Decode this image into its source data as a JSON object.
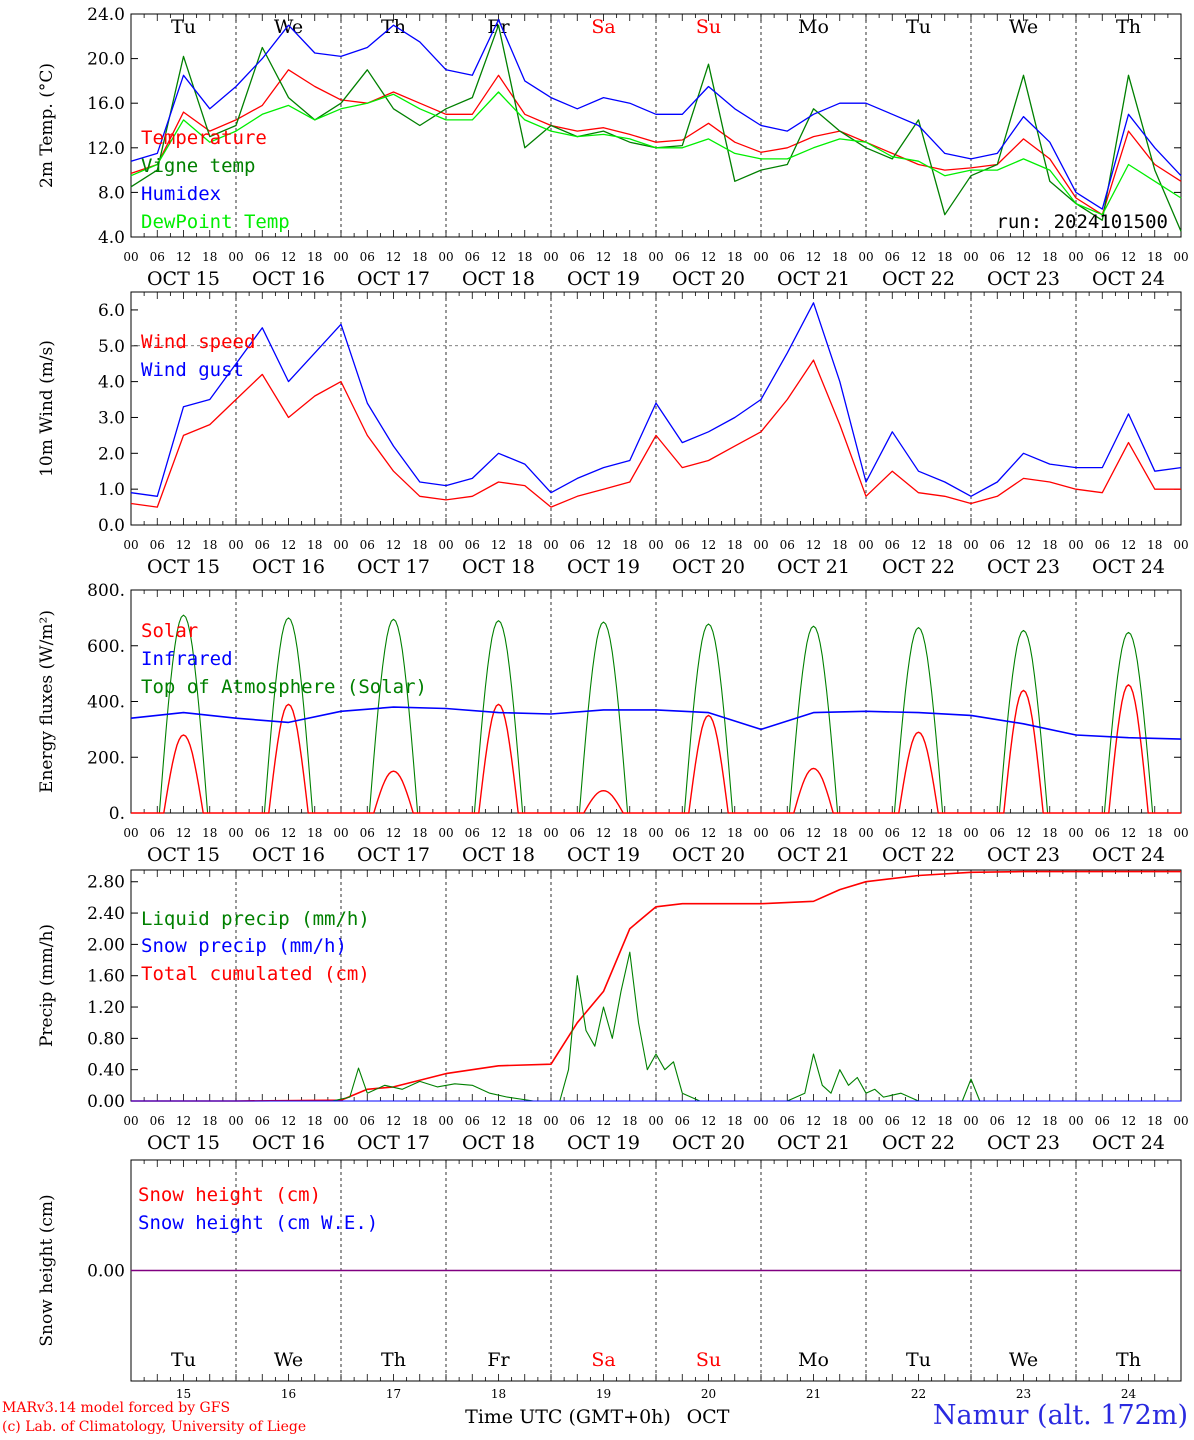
{
  "station": "Namur (alt. 172m)",
  "credits": [
    "MARv3.14 model forced by GFS",
    "(c) Lab. of Climatology, University of Liege"
  ],
  "run_label": "run: 2024101500",
  "xlabel": "Time UTC (GMT+0h)",
  "month": "OCT",
  "hour_ticks": [
    "00",
    "06",
    "12",
    "18"
  ],
  "date_labels": [
    "OCT 15",
    "OCT 16",
    "OCT 17",
    "OCT 18",
    "OCT 19",
    "OCT 20",
    "OCT 21",
    "OCT 22",
    "OCT 23",
    "OCT 24"
  ],
  "day_numbers": [
    "15",
    "16",
    "17",
    "18",
    "19",
    "20",
    "21",
    "22",
    "23",
    "24"
  ],
  "weekdays": [
    "Tu",
    "We",
    "Th",
    "Fr",
    "Sa",
    "Su",
    "Mo",
    "Tu",
    "We",
    "Th"
  ],
  "weekend_flags": [
    false,
    false,
    false,
    false,
    true,
    true,
    false,
    false,
    false,
    false
  ],
  "colors": {
    "red": "#ff0000",
    "green": "#008000",
    "blue": "#0000ff",
    "lightgreen": "#00ee00",
    "purple": "#800080",
    "weekend": "#ff0000",
    "station": "#2a2ae0"
  },
  "chart_data": [
    {
      "type": "line",
      "ylabel": "2m Temp. (°C)",
      "yticks": [
        "24.0",
        "20.0",
        "16.0",
        "12.0",
        "8.0",
        "4.0"
      ],
      "ylim": [
        4,
        24
      ],
      "legend": [
        "Temperature",
        "Vigne temp",
        "Humidex",
        "DewPoint Temp"
      ],
      "x_hours": [
        0,
        6,
        12,
        18,
        24,
        30,
        36,
        42,
        48,
        54,
        60,
        66,
        72,
        78,
        84,
        90,
        96,
        102,
        108,
        114,
        120,
        126,
        132,
        138,
        144,
        150,
        156,
        162,
        168,
        174,
        180,
        186,
        192,
        198,
        204,
        210,
        216,
        222,
        228,
        234,
        240
      ],
      "series": [
        {
          "name": "Temperature",
          "color": "red",
          "values": [
            9.7,
            10.5,
            15.2,
            13.5,
            14.5,
            15.8,
            19.0,
            17.5,
            16.3,
            16.0,
            17.0,
            16.0,
            15.0,
            15.0,
            18.5,
            15.0,
            14.0,
            13.5,
            13.8,
            13.2,
            12.5,
            12.7,
            14.2,
            12.5,
            11.6,
            12.0,
            13.0,
            13.5,
            12.5,
            11.5,
            10.5,
            10.0,
            10.2,
            10.5,
            12.8,
            11.0,
            7.5,
            6.0,
            13.5,
            10.5,
            9.0
          ]
        },
        {
          "name": "Vigne temp",
          "color": "green",
          "values": [
            8.5,
            10.0,
            20.2,
            13.0,
            14.0,
            21.0,
            16.5,
            14.5,
            16.0,
            19.0,
            15.5,
            14.0,
            15.5,
            16.5,
            23.0,
            12.0,
            14.0,
            13.0,
            13.5,
            12.5,
            12.0,
            12.2,
            19.5,
            9.0,
            10.0,
            10.5,
            15.5,
            13.5,
            12.0,
            11.0,
            14.5,
            6.0,
            9.5,
            10.5,
            18.5,
            9.0,
            7.0,
            5.5,
            18.5,
            10.0,
            4.5
          ]
        },
        {
          "name": "Humidex",
          "color": "blue",
          "values": [
            10.8,
            11.5,
            18.5,
            15.5,
            17.5,
            20.0,
            23.0,
            20.5,
            20.2,
            21.0,
            23.0,
            21.5,
            19.0,
            18.5,
            23.5,
            18.0,
            16.5,
            15.5,
            16.5,
            16.0,
            15.0,
            15.0,
            17.5,
            15.5,
            14.0,
            13.5,
            15.0,
            16.0,
            16.0,
            15.0,
            14.0,
            11.5,
            11.0,
            11.5,
            14.8,
            12.5,
            8.0,
            6.5,
            15.0,
            12.0,
            9.5
          ]
        },
        {
          "name": "DewPoint Temp",
          "color": "lightgreen",
          "values": [
            9.5,
            10.5,
            14.5,
            12.5,
            13.5,
            15.0,
            15.8,
            14.5,
            15.5,
            16.0,
            16.8,
            15.5,
            14.5,
            14.5,
            17.0,
            14.5,
            13.5,
            13.0,
            13.2,
            12.8,
            12.0,
            12.0,
            12.8,
            11.5,
            11.0,
            11.0,
            12.0,
            12.8,
            12.5,
            11.2,
            10.8,
            9.5,
            10.0,
            10.0,
            11.0,
            10.0,
            7.0,
            6.0,
            10.5,
            9.0,
            7.5
          ]
        }
      ]
    },
    {
      "type": "line",
      "ylabel": "10m Wind (m/s)",
      "yticks": [
        "6.0",
        "5.0",
        "4.0",
        "3.0",
        "2.0",
        "1.0",
        "0.0"
      ],
      "ylim": [
        0,
        6.5
      ],
      "reference_line": 5.0,
      "legend": [
        "Wind speed",
        "Wind gust"
      ],
      "x_hours": [
        0,
        6,
        12,
        18,
        24,
        30,
        36,
        42,
        48,
        54,
        60,
        66,
        72,
        78,
        84,
        90,
        96,
        102,
        108,
        114,
        120,
        126,
        132,
        138,
        144,
        150,
        156,
        162,
        168,
        174,
        180,
        186,
        192,
        198,
        204,
        210,
        216,
        222,
        228,
        234,
        240
      ],
      "series": [
        {
          "name": "Wind speed",
          "color": "red",
          "values": [
            0.6,
            0.5,
            2.5,
            2.8,
            3.5,
            4.2,
            3.0,
            3.6,
            4.0,
            2.5,
            1.5,
            0.8,
            0.7,
            0.8,
            1.2,
            1.1,
            0.5,
            0.8,
            1.0,
            1.2,
            2.5,
            1.6,
            1.8,
            2.2,
            2.6,
            3.5,
            4.6,
            2.8,
            0.8,
            1.5,
            0.9,
            0.8,
            0.6,
            0.8,
            1.3,
            1.2,
            1.0,
            0.9,
            2.3,
            1.0,
            1.0
          ]
        },
        {
          "name": "Wind gust",
          "color": "blue",
          "values": [
            0.9,
            0.8,
            3.3,
            3.5,
            4.5,
            5.5,
            4.0,
            4.8,
            5.6,
            3.4,
            2.2,
            1.2,
            1.1,
            1.3,
            2.0,
            1.7,
            0.9,
            1.3,
            1.6,
            1.8,
            3.4,
            2.3,
            2.6,
            3.0,
            3.5,
            4.8,
            6.2,
            4.0,
            1.2,
            2.6,
            1.5,
            1.2,
            0.8,
            1.2,
            2.0,
            1.7,
            1.6,
            1.6,
            3.1,
            1.5,
            1.6
          ]
        }
      ]
    },
    {
      "type": "line",
      "ylabel": "Energy fluxes (W/m²)",
      "yticks": [
        "800.",
        "600.",
        "400.",
        "200.",
        "0."
      ],
      "ylim": [
        0,
        800
      ],
      "legend": [
        "Solar",
        "Infrared",
        "Top of Atmosphere (Solar)"
      ],
      "toa_peaks": [
        710,
        700,
        695,
        690,
        685,
        678,
        670,
        665,
        655,
        648
      ],
      "solar_peaks": [
        280,
        390,
        150,
        390,
        80,
        350,
        160,
        290,
        440,
        460
      ],
      "infrared": {
        "name": "Infrared",
        "color": "blue",
        "x_hours": [
          0,
          12,
          24,
          36,
          48,
          60,
          72,
          84,
          96,
          108,
          120,
          132,
          144,
          156,
          168,
          180,
          192,
          204,
          216,
          228,
          240
        ],
        "values": [
          340,
          360,
          340,
          325,
          365,
          380,
          375,
          360,
          355,
          370,
          370,
          360,
          300,
          360,
          365,
          360,
          350,
          320,
          280,
          270,
          265
        ]
      }
    },
    {
      "type": "line",
      "ylabel": "Precip (mm/h)",
      "yticks": [
        "2.80",
        "2.40",
        "2.00",
        "1.60",
        "1.20",
        "0.80",
        "0.40",
        "0.00"
      ],
      "ylim": [
        0,
        2.95
      ],
      "legend": [
        "Liquid precip (mm/h)",
        "Snow precip (mm/h)",
        "Total cumulated (cm)"
      ],
      "series": [
        {
          "name": "Total cumulated (cm)",
          "color": "red",
          "x_hours": [
            0,
            24,
            48,
            54,
            60,
            72,
            84,
            96,
            102,
            108,
            114,
            120,
            126,
            132,
            144,
            156,
            162,
            168,
            180,
            192,
            204,
            216,
            240
          ],
          "values": [
            0.0,
            0.0,
            0.01,
            0.15,
            0.18,
            0.35,
            0.45,
            0.47,
            1.0,
            1.4,
            2.2,
            2.48,
            2.52,
            2.52,
            2.52,
            2.55,
            2.7,
            2.8,
            2.88,
            2.92,
            2.93,
            2.93,
            2.93
          ]
        },
        {
          "name": "Liquid precip (mm/h)",
          "color": "green",
          "x_hours": [
            0,
            46,
            50,
            52,
            54,
            58,
            62,
            66,
            70,
            74,
            78,
            82,
            86,
            92,
            98,
            100,
            102,
            104,
            106,
            108,
            110,
            112,
            114,
            116,
            118,
            120,
            122,
            124,
            126,
            130,
            150,
            154,
            156,
            158,
            160,
            162,
            164,
            166,
            168,
            170,
            172,
            176,
            180,
            190,
            192,
            194,
            240
          ],
          "values": [
            0,
            0,
            0.05,
            0.42,
            0.1,
            0.2,
            0.15,
            0.25,
            0.18,
            0.22,
            0.2,
            0.1,
            0.05,
            0,
            0,
            0.4,
            1.6,
            0.9,
            0.7,
            1.2,
            0.8,
            1.4,
            1.9,
            1.0,
            0.4,
            0.6,
            0.4,
            0.5,
            0.1,
            0,
            0,
            0.1,
            0.6,
            0.2,
            0.1,
            0.4,
            0.2,
            0.3,
            0.1,
            0.15,
            0.05,
            0.1,
            0,
            0,
            0.28,
            0,
            0
          ]
        },
        {
          "name": "Snow precip (mm/h)",
          "color": "blue",
          "x_hours": [
            0,
            240
          ],
          "values": [
            0,
            0
          ]
        }
      ]
    },
    {
      "type": "line",
      "ylabel": "Snow height (cm)",
      "yticks": [
        "0.00"
      ],
      "legend": [
        "Snow height (cm)",
        "Snow height (cm W.E.)"
      ],
      "series": [
        {
          "name": "Snow height (cm)",
          "color": "red",
          "x_hours": [
            0,
            240
          ],
          "values": [
            0,
            0
          ]
        },
        {
          "name": "Snow height (cm W.E.)",
          "color": "blue",
          "x_hours": [
            0,
            240
          ],
          "values": [
            0,
            0
          ]
        }
      ]
    }
  ]
}
